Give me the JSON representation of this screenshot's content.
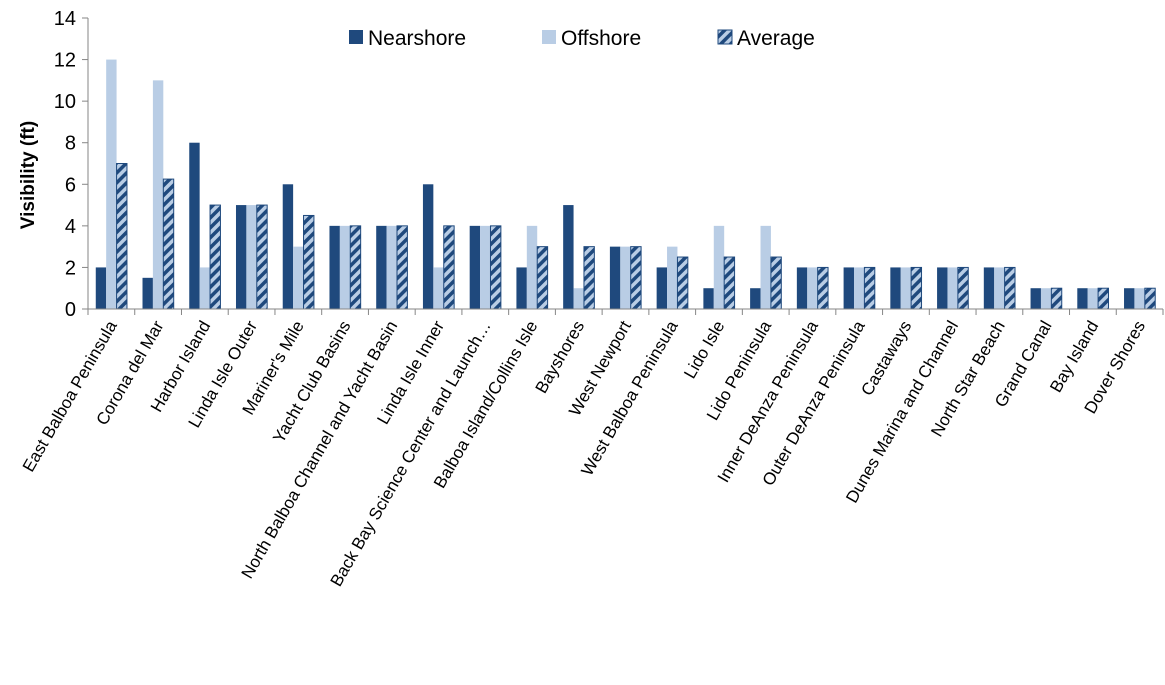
{
  "chart_data": {
    "type": "bar",
    "title": "",
    "xlabel": "",
    "ylabel": "Visibility (ft)",
    "ylim": [
      0,
      14
    ],
    "yticks": [
      0,
      2,
      4,
      6,
      8,
      10,
      12,
      14
    ],
    "grid": false,
    "legend_position": "top-center",
    "categories": [
      "East Balboa Peninsula",
      "Corona del Mar",
      "Harbor Island",
      "Linda Isle Outer",
      "Mariner's Mile",
      "Yacht Club Basins",
      "North Balboa Channel and Yacht Basin",
      "Linda Isle Inner",
      "Back Bay Science Center and Launch…",
      "Balboa Island/Collins Isle",
      "Bayshores",
      "West Newport",
      "West Balboa Peninsula",
      "Lido Isle",
      "Lido Peninsula",
      "Inner DeAnza Peninsula",
      "Outer DeAnza Peninsula",
      "Castaways",
      "Dunes Marina and Channel",
      "North Star Beach",
      "Grand Canal",
      "Bay Island",
      "Dover Shores"
    ],
    "series": [
      {
        "name": "Nearshore",
        "color": "#1f497d",
        "pattern": "solid",
        "values": [
          2,
          1.5,
          8,
          5,
          6,
          4,
          4,
          6,
          4,
          2,
          5,
          3,
          2,
          1,
          1,
          2,
          2,
          2,
          2,
          2,
          1,
          1,
          1
        ]
      },
      {
        "name": "Offshore",
        "color": "#b9cde5",
        "pattern": "solid",
        "values": [
          12,
          11,
          2,
          5,
          3,
          4,
          4,
          2,
          4,
          4,
          1,
          3,
          3,
          4,
          4,
          2,
          2,
          2,
          2,
          2,
          1,
          1,
          1
        ]
      },
      {
        "name": "Average",
        "color": "#1f497d",
        "pattern": "diagonal-stripes",
        "values": [
          7,
          6.25,
          5,
          5,
          4.5,
          4,
          4,
          4,
          4,
          3,
          3,
          3,
          2.5,
          2.5,
          2.5,
          2,
          2,
          2,
          2,
          2,
          1,
          1,
          1
        ]
      }
    ]
  }
}
